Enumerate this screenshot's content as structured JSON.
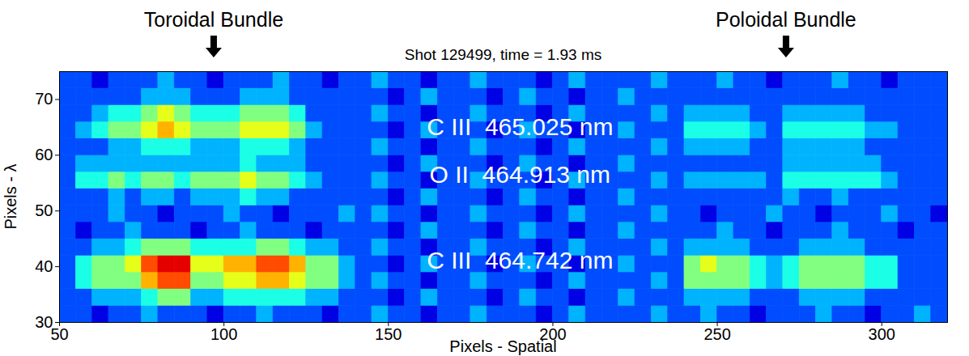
{
  "chart_data": {
    "type": "heatmap",
    "title": "Shot 129499, time = 1.93 ms",
    "x_label": "Pixels - Spatial",
    "y_label": "Pixels - λ",
    "xlim": [
      50,
      320
    ],
    "xticks": [
      50,
      100,
      150,
      200,
      250,
      300
    ],
    "ylim": [
      30,
      75
    ],
    "yticks": [
      30,
      40,
      50,
      60,
      70
    ],
    "zlim": [
      0,
      10
    ],
    "x": [
      52.5,
      57.5,
      62.5,
      67.5,
      72.5,
      77.5,
      82.5,
      87.5,
      92.5,
      97.5,
      102.5,
      107.5,
      112.5,
      117.5,
      122.5,
      127.5,
      132.5,
      137.5,
      142.5,
      147.5,
      152.5,
      157.5,
      162.5,
      167.5,
      172.5,
      177.5,
      182.5,
      187.5,
      192.5,
      197.5,
      202.5,
      207.5,
      212.5,
      217.5,
      222.5,
      227.5,
      232.5,
      237.5,
      242.5,
      247.5,
      252.5,
      257.5,
      262.5,
      267.5,
      272.5,
      277.5,
      282.5,
      287.5,
      292.5,
      297.5,
      302.5,
      307.5,
      312.5,
      317.5
    ],
    "y": [
      31.5,
      34.5,
      37.5,
      40.5,
      43.5,
      46.5,
      49.5,
      52.5,
      55.5,
      58.5,
      61.5,
      64.5,
      67.5,
      70.5,
      73.5
    ],
    "values": [
      [
        2,
        2,
        1,
        2,
        2,
        3,
        2,
        2,
        2,
        1,
        2,
        2,
        3,
        2,
        2,
        2,
        1,
        2,
        2,
        3,
        2,
        2,
        1,
        2,
        2,
        3,
        2,
        2,
        2,
        1,
        2,
        3,
        2,
        2,
        2,
        2,
        3,
        2,
        2,
        3,
        2,
        2,
        1,
        2,
        2,
        2,
        3,
        2,
        2,
        1,
        2,
        2,
        3,
        2
      ],
      [
        2,
        2,
        3,
        3,
        3,
        4,
        5,
        5,
        3,
        3,
        4,
        4,
        4,
        4,
        4,
        3,
        3,
        2,
        2,
        2,
        1,
        2,
        3,
        2,
        2,
        2,
        1,
        2,
        3,
        2,
        2,
        1,
        2,
        2,
        3,
        2,
        2,
        2,
        3,
        3,
        3,
        3,
        2,
        2,
        2,
        3,
        3,
        3,
        3,
        2,
        2,
        2,
        2,
        2
      ],
      [
        2,
        4,
        5,
        5,
        5,
        7,
        8,
        8,
        5,
        5,
        6,
        6,
        7,
        7,
        6,
        5,
        5,
        3,
        2,
        3,
        2,
        2,
        1,
        2,
        2,
        3,
        2,
        2,
        2,
        1,
        2,
        3,
        2,
        2,
        2,
        2,
        3,
        2,
        5,
        5,
        5,
        5,
        4,
        3,
        4,
        5,
        5,
        5,
        5,
        4,
        4,
        2,
        2,
        2
      ],
      [
        2,
        4,
        5,
        5,
        6,
        8,
        9,
        9,
        6,
        6,
        7,
        7,
        8,
        8,
        7,
        5,
        5,
        3,
        2,
        2,
        1,
        2,
        3,
        2,
        2,
        2,
        1,
        2,
        3,
        2,
        2,
        1,
        2,
        2,
        3,
        2,
        2,
        2,
        5,
        6,
        5,
        5,
        4,
        3,
        4,
        5,
        5,
        5,
        5,
        4,
        4,
        2,
        2,
        2
      ],
      [
        2,
        2,
        3,
        3,
        4,
        5,
        5,
        5,
        4,
        4,
        4,
        4,
        5,
        5,
        4,
        3,
        3,
        2,
        2,
        3,
        2,
        2,
        1,
        2,
        2,
        3,
        2,
        2,
        2,
        1,
        2,
        3,
        2,
        2,
        2,
        2,
        3,
        2,
        3,
        3,
        3,
        3,
        2,
        2,
        2,
        3,
        3,
        3,
        3,
        2,
        2,
        2,
        2,
        2
      ],
      [
        2,
        1,
        2,
        2,
        3,
        2,
        2,
        2,
        1,
        2,
        2,
        3,
        2,
        2,
        2,
        1,
        2,
        2,
        2,
        2,
        1,
        2,
        3,
        2,
        2,
        2,
        1,
        2,
        3,
        2,
        2,
        1,
        2,
        2,
        3,
        2,
        2,
        2,
        2,
        2,
        3,
        2,
        2,
        1,
        2,
        2,
        2,
        3,
        2,
        2,
        2,
        1,
        2,
        2
      ],
      [
        2,
        2,
        2,
        3,
        2,
        2,
        1,
        2,
        2,
        2,
        3,
        2,
        2,
        1,
        2,
        2,
        2,
        3,
        2,
        3,
        2,
        2,
        1,
        2,
        2,
        3,
        2,
        2,
        2,
        1,
        2,
        3,
        2,
        2,
        2,
        2,
        3,
        2,
        2,
        1,
        2,
        2,
        2,
        3,
        2,
        2,
        1,
        2,
        2,
        2,
        3,
        2,
        2,
        1
      ],
      [
        2,
        2,
        2,
        3,
        2,
        3,
        3,
        2,
        3,
        3,
        3,
        4,
        3,
        3,
        2,
        2,
        2,
        2,
        2,
        2,
        1,
        2,
        3,
        2,
        2,
        2,
        1,
        2,
        3,
        2,
        2,
        1,
        2,
        2,
        3,
        2,
        2,
        2,
        2,
        2,
        2,
        2,
        2,
        2,
        3,
        2,
        2,
        3,
        2,
        2,
        2,
        2,
        2,
        2
      ],
      [
        2,
        4,
        4,
        5,
        4,
        5,
        5,
        4,
        5,
        5,
        5,
        6,
        5,
        5,
        4,
        3,
        2,
        2,
        2,
        3,
        2,
        2,
        1,
        2,
        2,
        3,
        2,
        2,
        2,
        1,
        2,
        3,
        2,
        2,
        2,
        2,
        3,
        2,
        3,
        3,
        3,
        3,
        3,
        2,
        4,
        4,
        4,
        4,
        4,
        4,
        3,
        2,
        2,
        2
      ],
      [
        2,
        3,
        3,
        3,
        3,
        3,
        3,
        3,
        3,
        3,
        3,
        4,
        3,
        3,
        3,
        2,
        2,
        2,
        2,
        2,
        1,
        2,
        3,
        2,
        2,
        2,
        1,
        2,
        3,
        2,
        2,
        1,
        2,
        2,
        3,
        2,
        2,
        2,
        2,
        2,
        2,
        2,
        2,
        2,
        3,
        3,
        3,
        3,
        3,
        3,
        2,
        2,
        2,
        2
      ],
      [
        2,
        2,
        2,
        3,
        3,
        4,
        4,
        4,
        3,
        3,
        3,
        4,
        4,
        4,
        3,
        2,
        2,
        2,
        2,
        3,
        2,
        2,
        1,
        2,
        2,
        3,
        2,
        2,
        2,
        1,
        2,
        3,
        2,
        2,
        2,
        2,
        3,
        2,
        3,
        3,
        3,
        3,
        2,
        2,
        3,
        3,
        3,
        3,
        3,
        2,
        2,
        2,
        2,
        2
      ],
      [
        2,
        3,
        4,
        5,
        5,
        6,
        7,
        6,
        5,
        5,
        5,
        6,
        6,
        6,
        5,
        3,
        2,
        2,
        2,
        2,
        1,
        2,
        3,
        2,
        2,
        2,
        1,
        2,
        3,
        2,
        2,
        1,
        2,
        2,
        3,
        2,
        2,
        2,
        4,
        4,
        4,
        4,
        3,
        2,
        4,
        4,
        4,
        4,
        4,
        3,
        3,
        2,
        2,
        2
      ],
      [
        2,
        2,
        3,
        4,
        4,
        5,
        6,
        5,
        4,
        4,
        4,
        5,
        5,
        5,
        4,
        2,
        2,
        2,
        2,
        3,
        2,
        2,
        1,
        2,
        2,
        3,
        2,
        2,
        2,
        1,
        2,
        3,
        2,
        2,
        2,
        2,
        3,
        2,
        3,
        3,
        3,
        3,
        2,
        2,
        3,
        3,
        3,
        3,
        3,
        2,
        2,
        2,
        2,
        2
      ],
      [
        2,
        2,
        2,
        2,
        2,
        3,
        3,
        3,
        2,
        2,
        2,
        3,
        3,
        3,
        2,
        2,
        2,
        2,
        2,
        2,
        1,
        2,
        3,
        2,
        2,
        2,
        1,
        2,
        3,
        2,
        2,
        1,
        2,
        2,
        3,
        2,
        2,
        2,
        2,
        2,
        2,
        2,
        2,
        2,
        2,
        2,
        2,
        2,
        2,
        2,
        2,
        2,
        2,
        2
      ],
      [
        2,
        2,
        1,
        2,
        2,
        2,
        3,
        2,
        2,
        1,
        2,
        2,
        2,
        3,
        2,
        2,
        1,
        2,
        2,
        3,
        2,
        2,
        1,
        2,
        2,
        3,
        2,
        2,
        2,
        1,
        2,
        3,
        2,
        2,
        2,
        2,
        3,
        2,
        2,
        2,
        3,
        2,
        2,
        1,
        2,
        2,
        2,
        3,
        2,
        2,
        1,
        2,
        2,
        2
      ]
    ],
    "annotations": [
      {
        "text": "C III  465.025 nm",
        "x": 190,
        "y": 65
      },
      {
        "text": "O II  464.913 nm",
        "x": 190,
        "y": 56.5
      },
      {
        "text": "C III  464.742 nm",
        "x": 190,
        "y": 41
      }
    ],
    "markers": [
      {
        "text": "Toroidal Bundle",
        "x": 97
      },
      {
        "text": "Poloidal Bundle",
        "x": 271
      }
    ]
  }
}
